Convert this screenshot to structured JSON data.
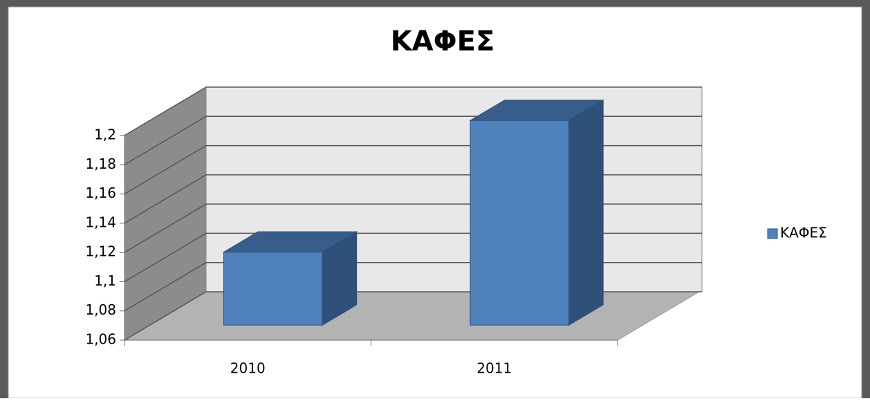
{
  "chart_data": {
    "type": "bar3d",
    "title": "ΚΑΦΕΣ",
    "categories": [
      "2010",
      "2011"
    ],
    "series": [
      {
        "name": "ΚΑΦΕΣ",
        "color": "#4f81bd",
        "values": [
          1.11,
          1.2
        ]
      }
    ],
    "ylim": [
      1.06,
      1.2
    ],
    "yticks": [
      {
        "value": 1.06,
        "label": "1,06"
      },
      {
        "value": 1.08,
        "label": "1,08"
      },
      {
        "value": 1.1,
        "label": "1,1"
      },
      {
        "value": 1.12,
        "label": "1,12"
      },
      {
        "value": 1.14,
        "label": "1,14"
      },
      {
        "value": 1.16,
        "label": "1,16"
      },
      {
        "value": 1.18,
        "label": "1,18"
      },
      {
        "value": 1.2,
        "label": "1,2"
      }
    ],
    "grid": true,
    "legend": "right"
  }
}
